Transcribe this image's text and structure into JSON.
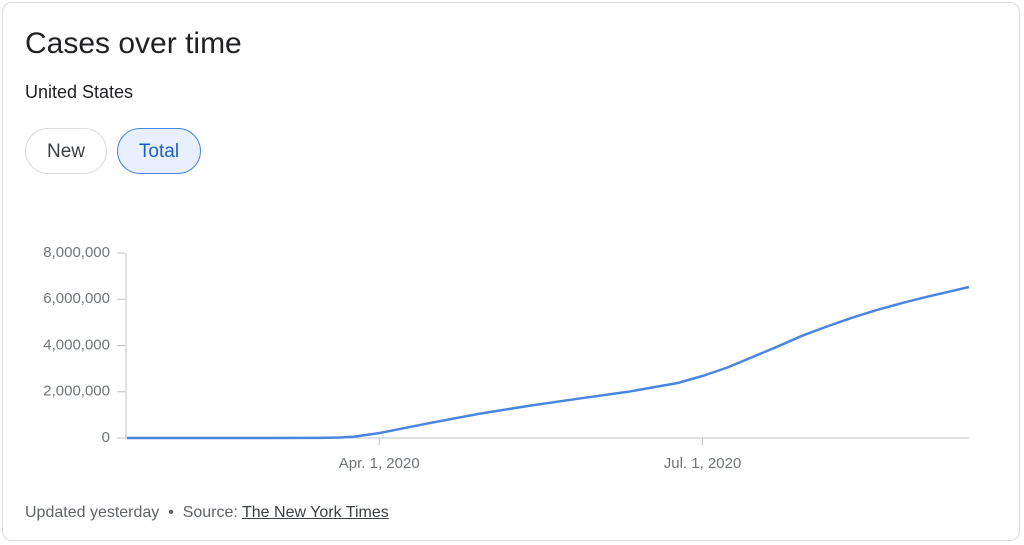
{
  "header": {
    "title": "Cases over time",
    "subtitle": "United States"
  },
  "buttons": [
    "New",
    "Total"
  ],
  "chart_data": {
    "type": "line",
    "x": [
      "2020-01-21",
      "2020-02-01",
      "2020-03-01",
      "2020-03-15",
      "2020-03-21",
      "2020-03-25",
      "2020-04-01",
      "2020-04-15",
      "2020-04-29",
      "2020-05-13",
      "2020-05-27",
      "2020-06-10",
      "2020-06-24",
      "2020-07-01",
      "2020-07-08",
      "2020-07-15",
      "2020-07-22",
      "2020-07-29",
      "2020-08-05",
      "2020-08-12",
      "2020-08-19",
      "2020-08-26",
      "2020-09-02",
      "2020-09-09",
      "2020-09-14"
    ],
    "series": [
      {
        "name": "Total",
        "color": "#4a86e0",
        "values": [
          0,
          0,
          0,
          3000,
          20000,
          60000,
          210000,
          640000,
          1040000,
          1390000,
          1700000,
          2000000,
          2380000,
          2680000,
          3050000,
          3500000,
          3950000,
          4420000,
          4820000,
          5200000,
          5530000,
          5830000,
          6100000,
          6350000,
          6530000
        ]
      }
    ],
    "xlim": [
      "2020-01-21",
      "2020-09-14"
    ],
    "xticks": [
      {
        "value": "2020-04-01",
        "label": "Apr. 1, 2020"
      },
      {
        "value": "2020-07-01",
        "label": "Jul. 1, 2020"
      }
    ],
    "ylim": [
      0,
      8000000
    ],
    "yticks": [
      0,
      {
        "value": 2000000,
        "label": "2,000,000"
      },
      {
        "value": 4000000,
        "label": "4,000,000"
      },
      {
        "value": 6000000,
        "label": "6,000,000"
      },
      {
        "value": 8000000,
        "label": "8,000,000"
      }
    ]
  },
  "footer": {
    "updated": "Updated yesterday",
    "separator": "•",
    "source_label": "Source:",
    "source": "The New York Times"
  }
}
